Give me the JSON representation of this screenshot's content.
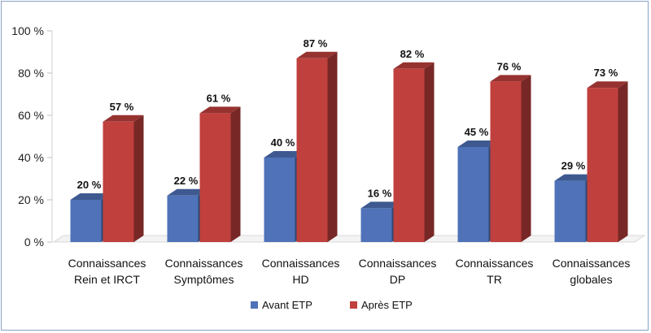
{
  "chart_data": {
    "type": "bar",
    "title": "",
    "xlabel": "",
    "ylabel": "",
    "ylim": [
      0,
      100
    ],
    "yticks": [
      0,
      20,
      40,
      60,
      80,
      100
    ],
    "ytick_labels": [
      "0 %",
      "20 %",
      "40 %",
      "60 %",
      "80 %",
      "100 %"
    ],
    "grid": false,
    "bar_style": "3d",
    "legend_position": "bottom",
    "categories": [
      [
        "Connaissances",
        "Rein et IRCT"
      ],
      [
        "Connaissances",
        "Symptômes"
      ],
      [
        "Connaissances",
        "HD"
      ],
      [
        "Connaissances",
        "DP"
      ],
      [
        "Connaissances",
        "TR"
      ],
      [
        "Connaissances",
        "globales"
      ]
    ],
    "series": [
      {
        "name": "Avant ETP",
        "color": "#4f72b8",
        "values": [
          20,
          22,
          40,
          16,
          45,
          29
        ],
        "labels": [
          "20 %",
          "22 %",
          "40 %",
          "16 %",
          "45 %",
          "29 %"
        ]
      },
      {
        "name": "Après ETP",
        "color": "#c0403d",
        "values": [
          57,
          61,
          87,
          82,
          76,
          73
        ],
        "labels": [
          "57 %",
          "61 %",
          "87 %",
          "82 %",
          "76 %",
          "73 %"
        ]
      }
    ]
  }
}
